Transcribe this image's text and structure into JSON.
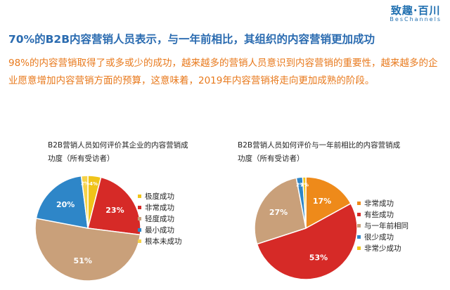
{
  "brand": {
    "name": "致趣·百川",
    "sub": "BesChannels"
  },
  "headline": "70%的B2B内容营销人员表示，与一年前相比，其组织的内容营销更加成功",
  "summary": "98%的内容营销取得了或多或少的成功，越来越多的营销人员意识到内容营销的重要性，越来越多的企业愿意增加内容营销方面的预算，这意味着，2019年内容营销将走向更加成熟的阶段。",
  "chart_data": [
    {
      "type": "pie",
      "title": "B2B营销人员如何评价其企业的内容营销成",
      "subtitle": "功度（所有受访者）",
      "slices": [
        {
          "label": "极度成功",
          "value": 4,
          "color": "#f0c419",
          "display": "4%"
        },
        {
          "label": "非常成功",
          "value": 23,
          "color": "#d62a27",
          "display": "23%"
        },
        {
          "label": "轻度成功",
          "value": 51,
          "color": "#c9a07a",
          "display": "51%"
        },
        {
          "label": "最小成功",
          "value": 20,
          "color": "#2e86c8",
          "display": "20%"
        },
        {
          "label": "根本未成功",
          "value": 2,
          "color": "#f5d24a",
          "display": "2%"
        }
      ],
      "legend": [
        "极度成功",
        "非常成功",
        "轻度成功",
        "最小成功",
        "根本未成功"
      ],
      "legend_colors": [
        "#f0c419",
        "#d62a27",
        "#c9a07a",
        "#2e86c8",
        "#f5d24a"
      ]
    },
    {
      "type": "pie",
      "title": "B2B营销人员如何评价与一年前相比的内容营销成",
      "subtitle": "功度（所有受访者）",
      "slices": [
        {
          "label": "非常成功",
          "value": 17,
          "color": "#ee8a1a",
          "display": "17%"
        },
        {
          "label": "有些成功",
          "value": 53,
          "color": "#d62a27",
          "display": "53%"
        },
        {
          "label": "与一年前相同",
          "value": 27,
          "color": "#c9a07a",
          "display": "27%"
        },
        {
          "label": "很少成功",
          "value": 2,
          "color": "#2e86c8",
          "display": "2%"
        },
        {
          "label": "非常少成功",
          "value": 1,
          "color": "#f0c419",
          "display": "1%"
        }
      ],
      "legend": [
        "非常成功",
        "有些成功",
        "与一年前相同",
        "很少成功",
        "非常少成功"
      ],
      "legend_colors": [
        "#ee8a1a",
        "#d62a27",
        "#c9a07a",
        "#2e86c8",
        "#f0c419"
      ]
    }
  ]
}
